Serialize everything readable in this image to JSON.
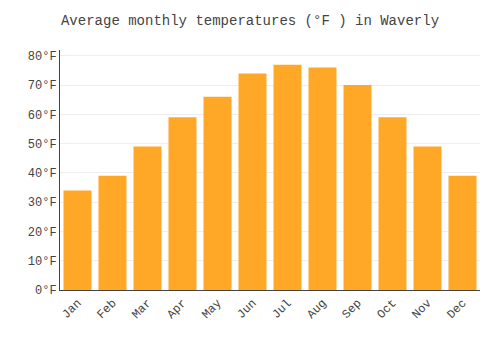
{
  "chart_data": {
    "type": "bar",
    "title": "Average monthly temperatures (°F ) in Waverly",
    "categories": [
      "Jan",
      "Feb",
      "Mar",
      "Apr",
      "May",
      "Jun",
      "Jul",
      "Aug",
      "Sep",
      "Oct",
      "Nov",
      "Dec"
    ],
    "values": [
      34,
      39,
      49,
      59,
      66,
      74,
      77,
      76,
      70,
      59,
      49,
      39
    ],
    "color": "#FFA726",
    "ylim": [
      0,
      82
    ],
    "yticks": [
      {
        "value": 0,
        "label": "0°F"
      },
      {
        "value": 10,
        "label": "10°F"
      },
      {
        "value": 20,
        "label": "20°F"
      },
      {
        "value": 30,
        "label": "30°F"
      },
      {
        "value": 40,
        "label": "40°F"
      },
      {
        "value": 50,
        "label": "50°F"
      },
      {
        "value": 60,
        "label": "60°F"
      },
      {
        "value": 70,
        "label": "70°F"
      },
      {
        "value": 80,
        "label": "80°F"
      }
    ],
    "grid": true
  }
}
